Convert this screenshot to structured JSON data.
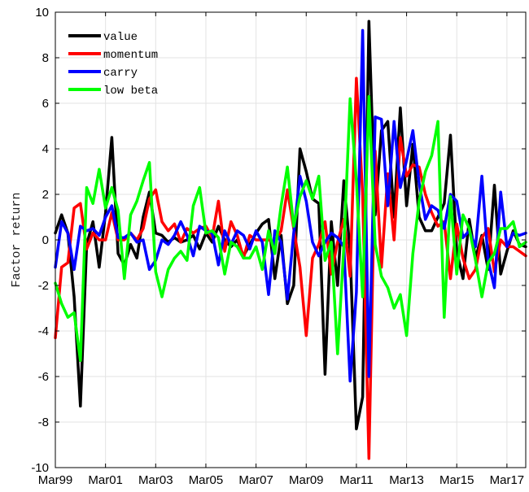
{
  "chart_data": {
    "type": "line",
    "title": "",
    "xlabel": "",
    "ylabel": "Factor return",
    "ylim": [
      -10,
      10
    ],
    "yticks": [
      -10,
      -8,
      -6,
      -4,
      -2,
      0,
      2,
      4,
      6,
      8,
      10
    ],
    "xtick_labels": [
      "Mar99",
      "Mar01",
      "Mar03",
      "Mar05",
      "Mar07",
      "Mar09",
      "Mar11",
      "Mar13",
      "Mar15",
      "Mar17"
    ],
    "xtick_positions": [
      0,
      8,
      16,
      24,
      32,
      40,
      48,
      56,
      64,
      72
    ],
    "x_count": 76,
    "grid": true,
    "legend_position": "top-left",
    "series": [
      {
        "name": "value",
        "color": "#000000",
        "values": [
          0.3,
          1.1,
          0.3,
          -2.5,
          -7.3,
          -0.2,
          0.8,
          -1.2,
          1.2,
          4.5,
          -0.6,
          -1.1,
          -0.2,
          -0.8,
          1.0,
          2.1,
          0.3,
          0.2,
          -0.1,
          0.1,
          -0.1,
          0.0,
          0.2,
          -0.4,
          0.3,
          -0.1,
          0.6,
          0.0,
          -0.3,
          0.0,
          -0.7,
          -0.2,
          0.3,
          0.7,
          0.9,
          -1.7,
          0.2,
          -2.8,
          -2.0,
          4.0,
          3.0,
          1.8,
          1.6,
          -5.9,
          0.8,
          -2.0,
          2.6,
          -0.5,
          -8.3,
          -6.9,
          9.6,
          1.1,
          4.8,
          5.2,
          1.0,
          5.8,
          1.5,
          4.2,
          1.0,
          0.4,
          0.4,
          1.0,
          1.6,
          4.6,
          -0.5,
          -1.7,
          0.9,
          -0.8,
          0.2,
          -1.3,
          2.4,
          -1.5,
          -0.5,
          0.4,
          -0.2,
          -0.3
        ]
      },
      {
        "name": "momentum",
        "color": "#ff0000",
        "values": [
          -4.3,
          -1.2,
          -1.0,
          1.4,
          1.6,
          -0.4,
          0.3,
          0.0,
          0.0,
          1.2,
          0.0,
          0.0,
          0.3,
          0.0,
          0.5,
          1.8,
          2.2,
          0.8,
          0.4,
          0.7,
          -0.1,
          0.5,
          0.3,
          0.5,
          0.6,
          0.1,
          1.7,
          -0.5,
          0.8,
          0.2,
          -0.8,
          0.2,
          0.0,
          0.0,
          0.0,
          -0.1,
          0.4,
          2.2,
          0.5,
          -1.2,
          -4.2,
          -0.8,
          -0.2,
          0.8,
          -1.5,
          -0.1,
          0.9,
          -1.6,
          7.1,
          2.0,
          -9.6,
          3.9,
          -1.2,
          2.9,
          0.0,
          4.5,
          2.8,
          3.3,
          3.2,
          2.0,
          1.2,
          0.6,
          0.8,
          -1.7,
          0.7,
          -0.8,
          -1.7,
          -1.3,
          0.1,
          0.5,
          -1.4,
          0.0,
          -0.3,
          -0.3,
          -0.5,
          -0.7
        ]
      },
      {
        "name": "carry",
        "color": "#0000ff",
        "values": [
          -1.2,
          0.8,
          0.3,
          -1.3,
          0.6,
          0.4,
          0.5,
          0.2,
          1.0,
          1.5,
          0.1,
          0.1,
          0.3,
          -0.1,
          0.0,
          -1.3,
          -0.9,
          0.0,
          -0.2,
          0.2,
          0.8,
          0.2,
          -0.7,
          0.6,
          0.4,
          0.3,
          -1.1,
          0.4,
          -0.2,
          0.4,
          0.2,
          -0.4,
          0.4,
          -0.1,
          -2.4,
          0.4,
          -0.1,
          -2.6,
          0.3,
          2.8,
          1.7,
          -0.1,
          -0.7,
          -0.1,
          0.3,
          0.1,
          -0.3,
          -6.2,
          -2.3,
          9.2,
          -6.0,
          5.4,
          5.3,
          1.5,
          5.2,
          2.3,
          3.5,
          4.8,
          2.5,
          0.9,
          1.5,
          1.3,
          0.5,
          2.0,
          1.7,
          0.1,
          0.4,
          -0.3,
          2.8,
          -0.9,
          -2.1,
          2.1,
          -0.3,
          0.3,
          0.2,
          0.3
        ]
      },
      {
        "name": "low beta",
        "color": "#00ff00",
        "values": [
          -1.9,
          -2.8,
          -3.4,
          -3.2,
          -5.3,
          2.3,
          1.6,
          3.1,
          1.4,
          2.3,
          1.3,
          -1.7,
          1.1,
          1.7,
          2.6,
          3.4,
          -1.4,
          -2.5,
          -1.3,
          -0.8,
          -0.5,
          -0.9,
          1.5,
          2.3,
          0.3,
          0.4,
          0.1,
          -1.5,
          -0.1,
          -0.3,
          -0.8,
          -0.8,
          -0.3,
          -1.3,
          0.4,
          -0.6,
          1.5,
          3.2,
          0.6,
          1.9,
          2.6,
          1.8,
          2.8,
          -0.9,
          -0.1,
          -5.0,
          -0.3,
          6.2,
          2.6,
          -2.5,
          6.3,
          -0.2,
          -1.6,
          -2.1,
          -3.0,
          -2.4,
          -4.2,
          -0.6,
          1.7,
          3.0,
          3.7,
          5.2,
          -3.4,
          1.9,
          -1.5,
          1.1,
          0.5,
          -0.9,
          -2.5,
          -1.0,
          -0.6,
          0.5,
          0.5,
          0.8,
          -0.3,
          -0.1
        ]
      }
    ]
  }
}
